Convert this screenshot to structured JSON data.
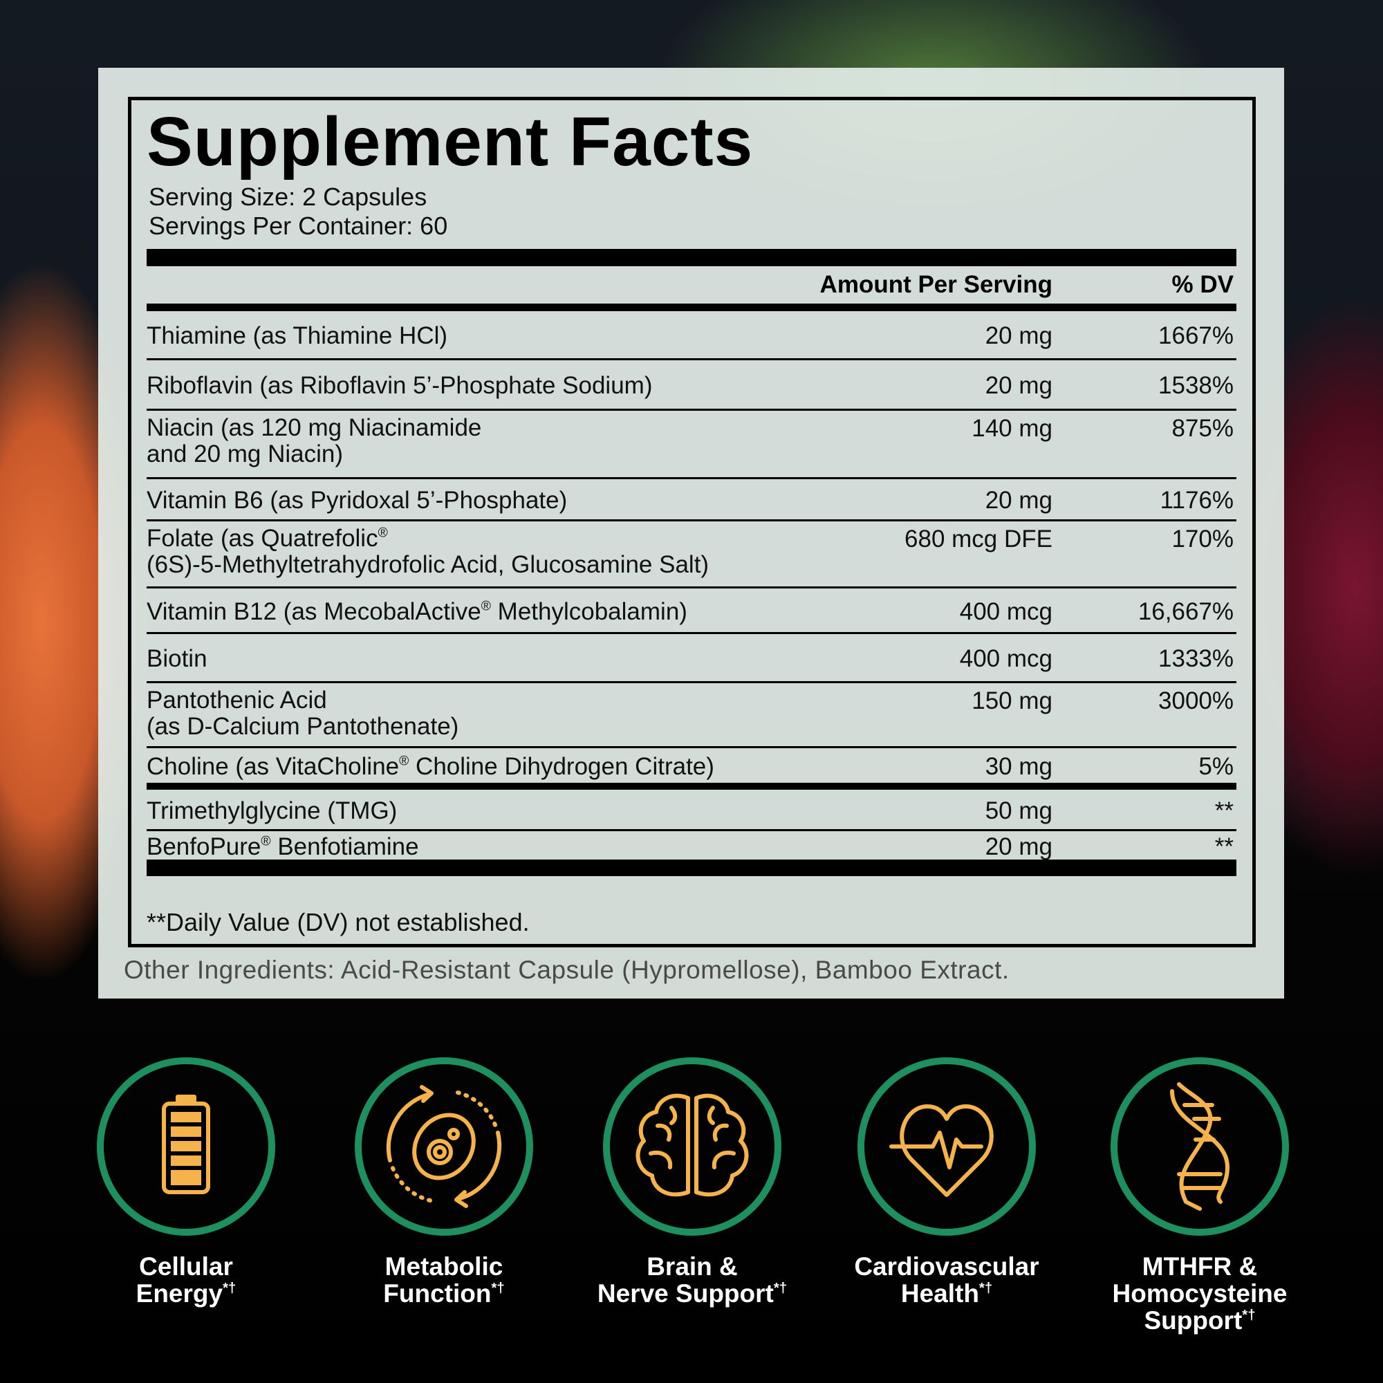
{
  "title": "Supplement Facts",
  "serving_size": "Serving Size: 2 Capsules",
  "servings_per_container": "Servings Per Container: 60",
  "columns": [
    "Amount Per Serving",
    "% DV"
  ],
  "rows": [
    {
      "name": [
        "Thiamine (as Thiamine HCl)"
      ],
      "amount": "20 mg",
      "dv": "1667%"
    },
    {
      "name": [
        "Riboflavin (as Riboflavin 5’-Phosphate Sodium)"
      ],
      "amount": "20 mg",
      "dv": "1538%"
    },
    {
      "name": [
        "Niacin (as 120 mg Niacinamide",
        "and 20 mg Niacin)"
      ],
      "amount": "140 mg",
      "dv": "875%"
    },
    {
      "name": [
        "Vitamin B6 (as Pyridoxal 5’-Phosphate)"
      ],
      "amount": "20 mg",
      "dv": "1176%"
    },
    {
      "name": [
        "Folate (as Quatrefolic®",
        "(6S)-5-Methyltetrahydrofolic Acid, Glucosamine Salt)"
      ],
      "amount": "680 mcg DFE",
      "dv": "170%"
    },
    {
      "name": [
        "Vitamin B12 (as MecobalActive® Methylcobalamin)"
      ],
      "amount": "400 mcg",
      "dv": "16,667%"
    },
    {
      "name": [
        "Biotin"
      ],
      "amount": "400 mcg",
      "dv": "1333%"
    },
    {
      "name": [
        "Pantothenic Acid",
        "(as D-Calcium Pantothenate)"
      ],
      "amount": "150 mg",
      "dv": "3000%"
    },
    {
      "name": [
        "Choline (as VitaCholine® Choline Dihydrogen Citrate)"
      ],
      "amount": "30 mg",
      "dv": "5%"
    },
    {
      "name": [
        "Trimethylglycine (TMG)"
      ],
      "amount": "50 mg",
      "dv": "**"
    },
    {
      "name": [
        "BenfoPure® Benfotiamine"
      ],
      "amount": "20 mg",
      "dv": "**"
    }
  ],
  "footnote": "**Daily Value (DV) not established.",
  "other_ingredients": "Other Ingredients: Acid-Resistant Capsule (Hypromellose), Bamboo Extract.",
  "benefits": [
    {
      "label": [
        "Cellular",
        "Energy"
      ],
      "mark": "*†"
    },
    {
      "label": [
        "Metabolic",
        "Function"
      ],
      "mark": "*†"
    },
    {
      "label": [
        "Brain &",
        "Nerve Support"
      ],
      "mark": "*†"
    },
    {
      "label": [
        "Cardiovascular",
        "Health"
      ],
      "mark": "*†"
    },
    {
      "label": [
        "MTHFR &",
        "Homocysteine",
        "Support"
      ],
      "mark": "*†"
    }
  ]
}
